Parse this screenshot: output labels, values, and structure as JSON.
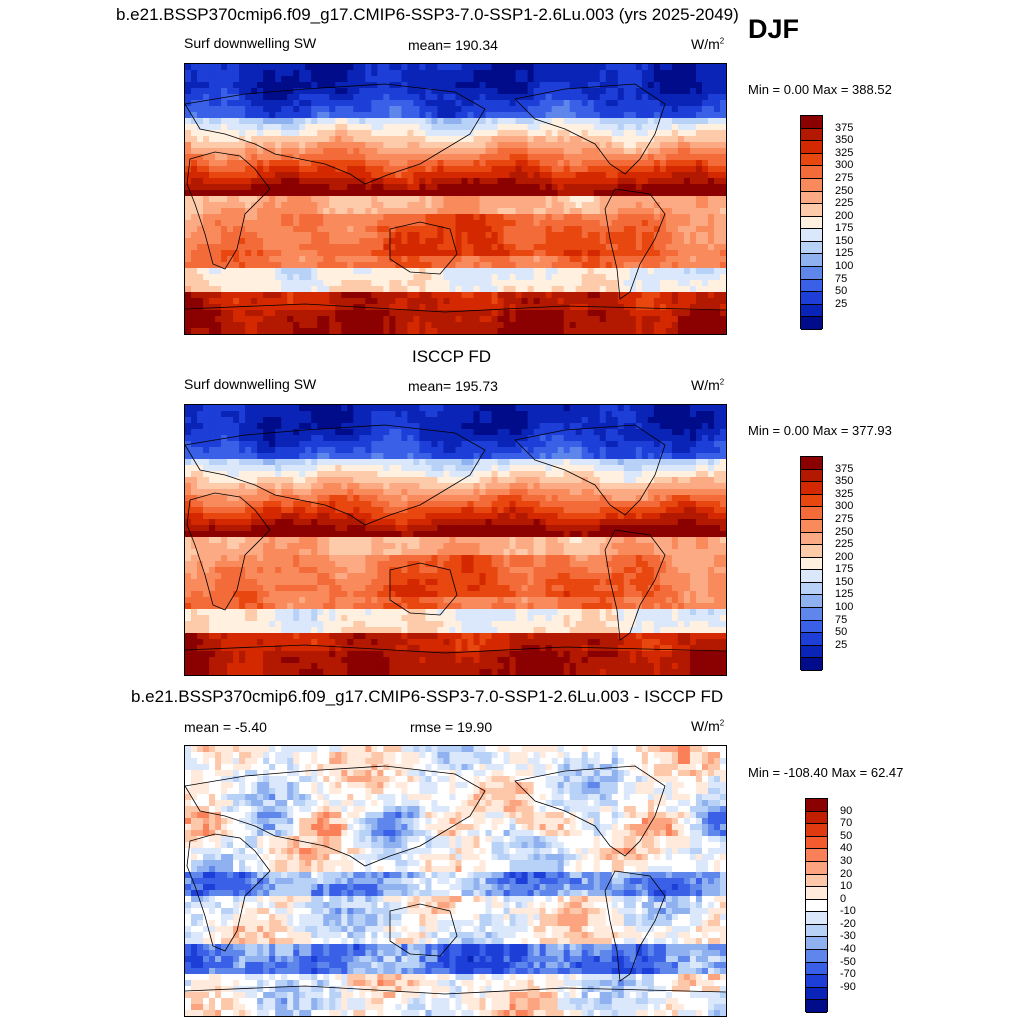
{
  "season": "DJF",
  "panels": [
    {
      "id": "model",
      "title": "b.e21.BSSP370cmip6.f09_g17.CMIP6-SSP3-7.0-SSP1-2.6Lu.003 (yrs 2025-2049)",
      "left_label": "Surf downwelling SW",
      "center_label": "mean= 190.34",
      "units": "W/m",
      "units_sup": "2",
      "minmax": "Min =   0.00 Max = 388.52",
      "field": "sw"
    },
    {
      "id": "obs",
      "title": "ISCCP FD",
      "left_label": "Surf downwelling SW",
      "center_label": "mean= 195.73",
      "units": "W/m",
      "units_sup": "2",
      "minmax": "Min =   0.00 Max = 377.93",
      "field": "sw"
    },
    {
      "id": "diff",
      "title": "b.e21.BSSP370cmip6.f09_g17.CMIP6-SSP3-7.0-SSP1-2.6Lu.003 - ISCCP FD",
      "left_label": "mean =  -5.40",
      "center_label": "rmse =  19.90",
      "units": "W/m",
      "units_sup": "2",
      "minmax": "Min = -108.40 Max =  62.47",
      "field": "diff"
    }
  ],
  "colorbars": {
    "sw": {
      "colors": [
        "#8b0000",
        "#b31800",
        "#d42800",
        "#e8470f",
        "#f46b3a",
        "#f98a5c",
        "#fcaa84",
        "#fdcbaa",
        "#fff0e0",
        "#dbe7fb",
        "#b8d1f7",
        "#8fb1f0",
        "#5f86ea",
        "#3a60e8",
        "#1d3fd8",
        "#0a24b8",
        "#000c8a"
      ],
      "ticks": [
        "375",
        "350",
        "325",
        "300",
        "275",
        "250",
        "225",
        "200",
        "175",
        "150",
        "125",
        "100",
        "75",
        "50",
        "25"
      ]
    },
    "diff": {
      "colors": [
        "#8b0000",
        "#c21e00",
        "#e03a10",
        "#f45c30",
        "#f98058",
        "#fca480",
        "#fdc8aa",
        "#ffeadc",
        "#ffffff",
        "#dbe7fb",
        "#b8d1f7",
        "#8fb1f0",
        "#5f86ea",
        "#3a60e8",
        "#1d3fd8",
        "#0a24b8",
        "#000c8a"
      ],
      "ticks": [
        "90",
        "70",
        "50",
        "40",
        "30",
        "20",
        "10",
        "0",
        "-10",
        "-20",
        "-30",
        "-40",
        "-50",
        "-70",
        "-90"
      ]
    }
  }
}
